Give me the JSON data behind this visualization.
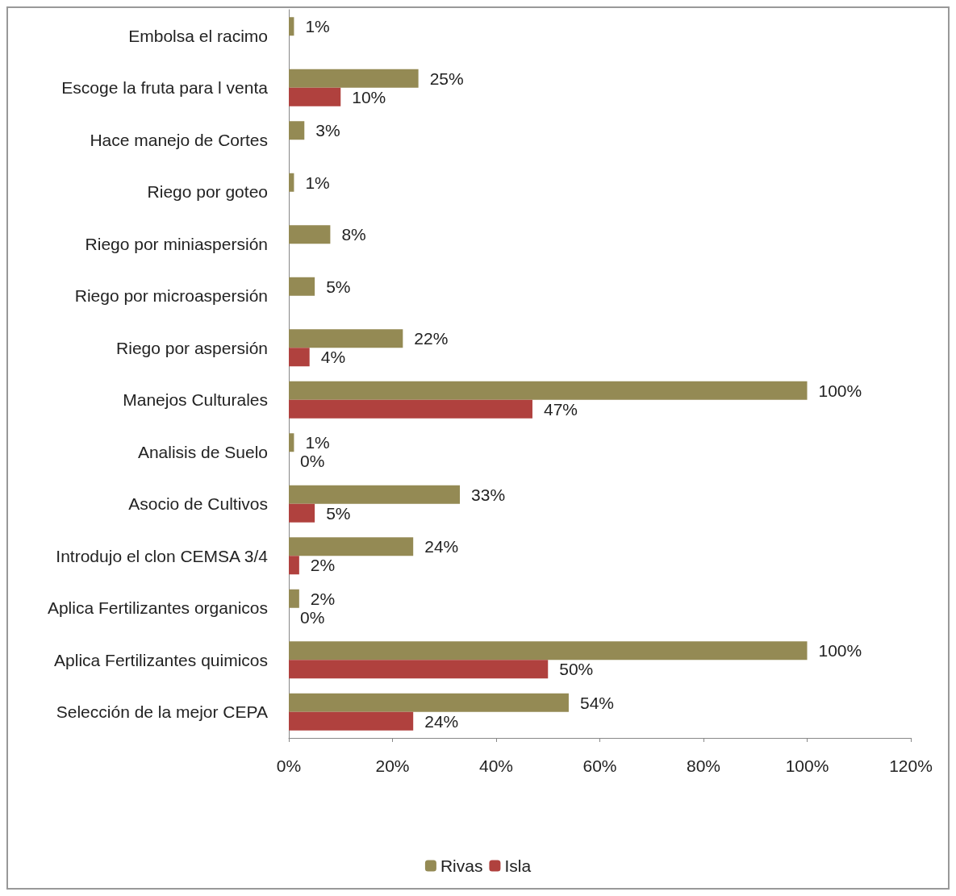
{
  "chart_data": {
    "type": "bar",
    "orientation": "horizontal",
    "categories": [
      "Embolsa el racimo",
      "Escoge la fruta para l venta",
      "Hace manejo de Cortes",
      "Riego por goteo",
      "Riego por miniaspersión",
      "Riego por microaspersión",
      "Riego por aspersión",
      "Manejos Culturales",
      "Analisis de Suelo",
      "Asocio de Cultivos",
      "Introdujo el clon CEMSA 3/4",
      "Aplica Fertilizantes organicos",
      "Aplica Fertilizantes quimicos",
      "Selección de la mejor CEPA"
    ],
    "series": [
      {
        "name": "Rivas",
        "color": "#948a54",
        "values": [
          1,
          25,
          3,
          1,
          8,
          5,
          22,
          100,
          1,
          33,
          24,
          2,
          100,
          54
        ],
        "value_labels": [
          "1%",
          "25%",
          "3%",
          "1%",
          "8%",
          "5%",
          "22%",
          "100%",
          "1%",
          "33%",
          "24%",
          "2%",
          "100%",
          "54%"
        ]
      },
      {
        "name": "Isla",
        "color": "#b0413e",
        "values": [
          null,
          10,
          null,
          null,
          null,
          null,
          4,
          47,
          0,
          5,
          2,
          0,
          50,
          24
        ],
        "value_labels": [
          null,
          "10%",
          null,
          null,
          null,
          null,
          "4%",
          "47%",
          "0%",
          "5%",
          "2%",
          "0%",
          "50%",
          "24%"
        ]
      }
    ],
    "xlim": [
      0,
      120
    ],
    "xticks": [
      {
        "value": 0,
        "label": "0%"
      },
      {
        "value": 20,
        "label": "20%"
      },
      {
        "value": 40,
        "label": "40%"
      },
      {
        "value": 60,
        "label": "60%"
      },
      {
        "value": 80,
        "label": "80%"
      },
      {
        "value": 100,
        "label": "100%"
      },
      {
        "value": 120,
        "label": "120%"
      }
    ],
    "grid": false,
    "legend": "bottom"
  }
}
